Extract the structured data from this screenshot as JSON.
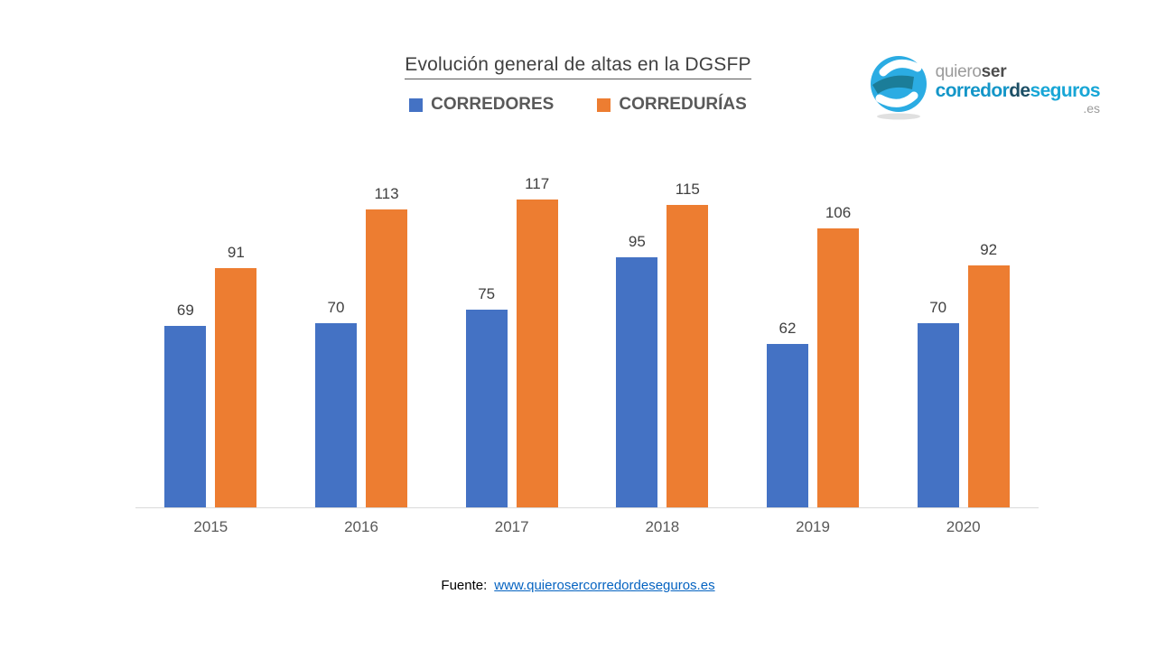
{
  "header": {
    "title": "Evolución general de altas en la DGSFP",
    "legend": [
      {
        "label": "CORREDORES",
        "color": "#4472C4"
      },
      {
        "label": "CORREDURÍAS",
        "color": "#ED7D31"
      }
    ]
  },
  "logo": {
    "line1_light": "quiero",
    "line1_bold": "ser",
    "line2_part1": "corredor",
    "line2_part2": "de",
    "line2_part3": "seguros",
    "tld": ".es",
    "colors": {
      "line1_light": "#9b9b9b",
      "line1_bold": "#4d4d4d",
      "line2_part1": "#1496c8",
      "line2_part2": "#1c4f66",
      "line2_part3": "#18a6d6",
      "tld": "#9b9b9b",
      "icon_blue": "#2bace3",
      "icon_teal": "#1b7d99"
    }
  },
  "chart_data": {
    "type": "bar",
    "categories": [
      "2015",
      "2016",
      "2017",
      "2018",
      "2019",
      "2020"
    ],
    "series": [
      {
        "name": "CORREDORES",
        "color": "#4472C4",
        "values": [
          69,
          70,
          75,
          95,
          62,
          70
        ]
      },
      {
        "name": "CORREDURÍAS",
        "color": "#ED7D31",
        "values": [
          91,
          113,
          117,
          115,
          106,
          92
        ]
      }
    ],
    "title": "Evolución general de altas en la DGSFP",
    "xlabel": "",
    "ylabel": "",
    "ylim": [
      0,
      120
    ],
    "grid": false,
    "legend_position": "top",
    "data_labels": true,
    "axis_line_color": "#d9d9d9"
  },
  "footer": {
    "source_label": "Fuente:",
    "link_text": "www.quierosercorredordeseguros.es",
    "link_color": "#0563C1"
  }
}
